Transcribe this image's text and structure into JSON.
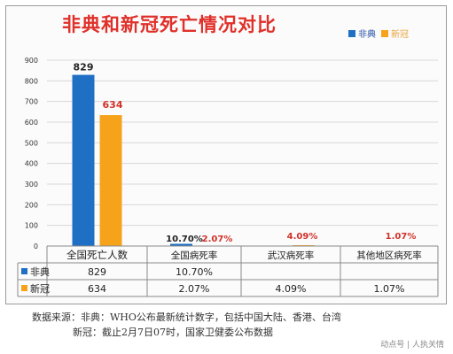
{
  "title": "非典和新冠死亡情况对比",
  "legend": [
    {
      "name": "非典",
      "color": "#1f6fc4"
    },
    {
      "name": "新冠",
      "color": "#f7a21b"
    }
  ],
  "chart_data": {
    "type": "bar",
    "ylim": [
      0,
      900
    ],
    "yticks": [
      0,
      100,
      200,
      300,
      400,
      500,
      600,
      700,
      800,
      900
    ],
    "categories": [
      "全国死亡人数",
      "全国病死率",
      "武汉病死率",
      "其他地区病死率"
    ],
    "series": [
      {
        "name": "非典",
        "color": "#1f6fc4",
        "values": [
          829,
          10.7,
          null,
          null
        ],
        "labels": [
          "829",
          "10.70%",
          "",
          ""
        ]
      },
      {
        "name": "新冠",
        "color": "#f7a21b",
        "values": [
          634,
          2.07,
          4.09,
          1.07
        ],
        "labels": [
          "634",
          "2.07%",
          "4.09%",
          "1.07%"
        ]
      }
    ],
    "grid": true,
    "legend_position": "top-right"
  },
  "table": {
    "rows": [
      {
        "name": "非典",
        "cells": [
          "829",
          "10.70%",
          "",
          ""
        ]
      },
      {
        "name": "新冠",
        "cells": [
          "634",
          "2.07%",
          "4.09%",
          "1.07%"
        ]
      }
    ]
  },
  "footnote": {
    "line1": "数据来源：非典：WHO公布最新统计数字，包括中国大陆、香港、台湾",
    "line2": "新冠：截止2月7日07时，国家卫健委公布数据"
  },
  "watermark": "动点号 | 人执关情"
}
